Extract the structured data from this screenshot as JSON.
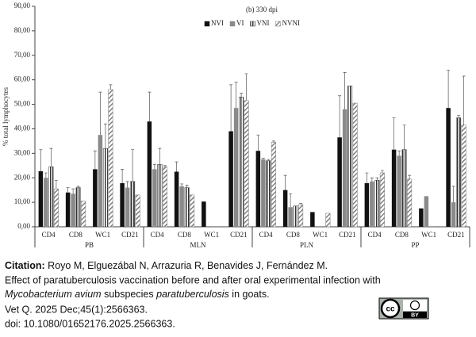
{
  "chart_data": {
    "type": "bar",
    "title": "(b) 330 dpi",
    "y_label": "% total lymphocytes",
    "categories": [
      "CD4",
      "CD8",
      "WC1",
      "CD21",
      "CD4",
      "CD8",
      "WC1",
      "CD21",
      "CD4",
      "CD8",
      "WC1",
      "CD21",
      "CD4",
      "CD8",
      "WC1",
      "CD21"
    ],
    "groups": [
      "PB",
      "MLN",
      "PLN",
      "PP"
    ],
    "series": [
      {
        "name": "NVI",
        "color": "#111111",
        "pattern": "solid",
        "values": [
          22.7,
          14,
          23.5,
          17.8,
          43,
          22.5,
          10.3,
          39,
          31,
          15,
          6,
          36.5,
          17.8,
          31.5,
          7.5,
          48.5
        ],
        "errors": [
          8.8,
          2,
          7.5,
          5.7,
          12,
          4,
          null,
          19,
          6.5,
          6,
          null,
          17,
          4.2,
          13,
          null,
          15.5
        ]
      },
      {
        "name": "VI",
        "color": "#8a8a8a",
        "pattern": "solid",
        "values": [
          20,
          13.5,
          37.5,
          16,
          23.5,
          16.5,
          null,
          48.5,
          27.5,
          8,
          null,
          48,
          18.5,
          29,
          12.5,
          10
        ],
        "errors": [
          2,
          2,
          17.5,
          2.5,
          2,
          1,
          null,
          10.5,
          0.5,
          5.5,
          null,
          15,
          1.5,
          2,
          null,
          6.5
        ]
      },
      {
        "name": "VNI",
        "color": "#333333",
        "pattern": "vertical",
        "values": [
          24.5,
          16,
          32,
          18.5,
          25.5,
          16,
          null,
          53,
          27,
          8.5,
          null,
          57.5,
          19,
          31.5,
          null,
          44.5
        ],
        "errors": [
          7.5,
          0.5,
          10,
          13,
          6.5,
          1,
          null,
          1.5,
          0.5,
          null,
          null,
          null,
          1,
          10,
          null,
          1
        ]
      },
      {
        "name": "NVNI",
        "color": "#777777",
        "pattern": "diagonal",
        "values": [
          15.5,
          10.5,
          56,
          13,
          24.5,
          13,
          null,
          51.5,
          34.5,
          9,
          5.5,
          50.5,
          22,
          19.5,
          null,
          41.5
        ],
        "errors": [
          3.5,
          null,
          2,
          null,
          0.5,
          null,
          null,
          11,
          0.5,
          0.5,
          null,
          null,
          1,
          1.5,
          null,
          20
        ]
      }
    ],
    "ylim": [
      0,
      90
    ],
    "yticks": [
      {
        "value": 0,
        "label": "0,00"
      },
      {
        "value": 10,
        "label": "10,00"
      },
      {
        "value": 20,
        "label": "20,00"
      },
      {
        "value": 30,
        "label": "30,00"
      },
      {
        "value": 40,
        "label": "40,00"
      },
      {
        "value": 50,
        "label": "50,00"
      },
      {
        "value": 60,
        "label": "60,00"
      },
      {
        "value": 70,
        "label": "70,00"
      },
      {
        "value": 80,
        "label": "80,00"
      },
      {
        "value": 90,
        "label": "90,00"
      }
    ],
    "grid": false,
    "legend": "top"
  },
  "citation": {
    "label": "Citation:",
    "authors": "Royo M, Elguezábal N, Arrazuria R, Benavides J, Fernández M.",
    "title_line": "Effect of paratuberculosis vaccination before and after oral experimental infection with",
    "genus_species": "Mycobacterium avium",
    "subspecies_word": "subspecies",
    "subspecies": "paratuberculosis",
    "title_end": "in goats.",
    "journal": "Vet Q. 2025 Dec;45(1):2566363.",
    "doi": "doi: 10.1080/01652176.2025.2566363.",
    "license": "BY"
  }
}
